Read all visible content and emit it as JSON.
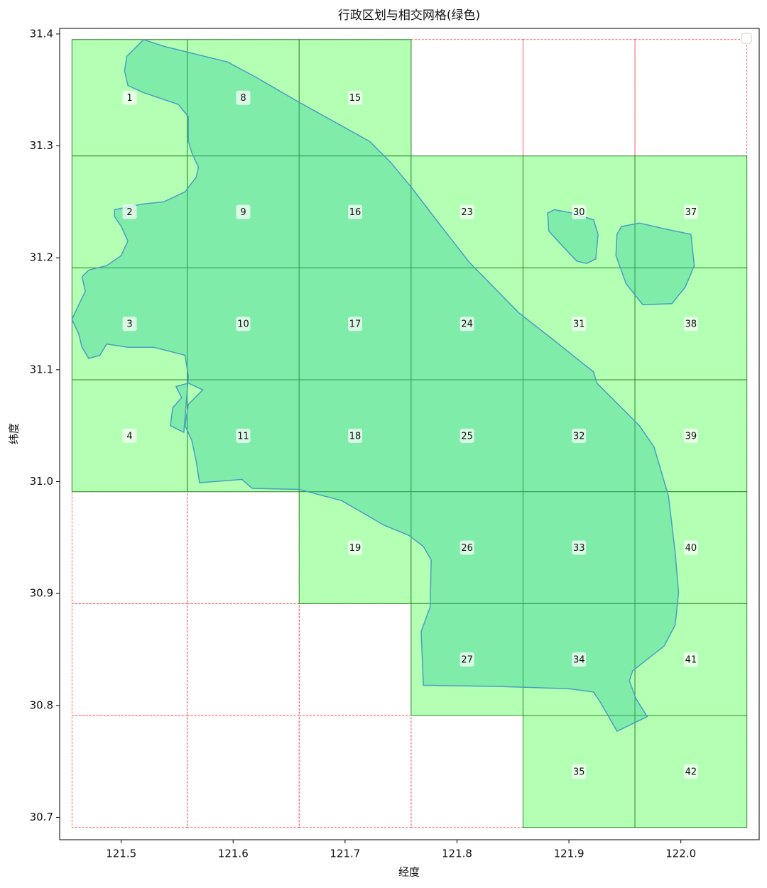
{
  "chart_data": {
    "type": "grid-map",
    "title": "行政区划与相交网格(绿色)",
    "x_label": "经度",
    "y_label": "纬度",
    "xlim": [
      121.445,
      122.07
    ],
    "ylim": [
      30.68,
      31.405
    ],
    "xticks": [
      121.5,
      121.6,
      121.7,
      121.8,
      121.9,
      {
        "value": 122,
        "label": "122.0"
      }
    ],
    "yticks": [
      30.7,
      30.8,
      30.9,
      {
        "value": 31,
        "label": "31.0"
      },
      31.1,
      31.2,
      31.3,
      31.4
    ],
    "x_edges": [
      121.456,
      121.559,
      121.659,
      121.759,
      121.859,
      121.959,
      122.059
    ],
    "y_edges": [
      31.395,
      31.291,
      31.191,
      31.091,
      30.991,
      30.891,
      30.791,
      30.691
    ],
    "grid_color": "#ff3b3b",
    "cell_color": "#b3ffb3",
    "cell_edge_color": "#2e8b2e",
    "region_color": "#20c997",
    "region_edge_color": "#4a9fc0",
    "cells": [
      1,
      2,
      3,
      4,
      8,
      9,
      10,
      11,
      15,
      16,
      17,
      18,
      19,
      23,
      24,
      25,
      26,
      27,
      30,
      31,
      32,
      33,
      34,
      35,
      37,
      38,
      39,
      40,
      41,
      42
    ],
    "regions": [
      {
        "lon": [
          121.52,
          121.538,
          121.595,
          121.621,
          121.659,
          121.722,
          121.741,
          121.76,
          121.786,
          121.811,
          121.855,
          121.887,
          121.922,
          121.925,
          121.947,
          121.963,
          121.976,
          121.989,
          121.995,
          121.998,
          121.995,
          121.985,
          121.957,
          121.954,
          121.96,
          121.97,
          121.943,
          121.928,
          121.922,
          121.9,
          121.836,
          121.77,
          121.768,
          121.776,
          121.777,
          121.77,
          121.757,
          121.735,
          121.697,
          121.659,
          121.617,
          121.608,
          121.57,
          121.567,
          121.563,
          121.557,
          121.56,
          121.573,
          121.56,
          121.549,
          121.554,
          121.546,
          121.544,
          121.556,
          121.56,
          121.557,
          121.541,
          121.529,
          121.506,
          121.487,
          121.481,
          121.471,
          121.465,
          121.462,
          121.456,
          121.462,
          121.468,
          121.465,
          121.471,
          121.487,
          121.5,
          121.506,
          121.5,
          121.494,
          121.494,
          121.519,
          121.538,
          121.557,
          121.567,
          121.569,
          121.563,
          121.56,
          121.56,
          121.551,
          121.519,
          121.506,
          121.503,
          121.505
        ],
        "lat": [
          31.395,
          31.389,
          31.375,
          31.361,
          31.339,
          31.304,
          31.285,
          31.262,
          31.228,
          31.196,
          31.151,
          31.126,
          31.098,
          31.088,
          31.066,
          31.05,
          31.031,
          30.987,
          30.936,
          30.901,
          30.872,
          30.853,
          30.831,
          30.822,
          30.806,
          30.79,
          30.777,
          30.803,
          30.812,
          30.815,
          30.817,
          30.818,
          30.866,
          30.888,
          30.93,
          30.942,
          30.952,
          30.961,
          30.983,
          30.993,
          30.994,
          31.002,
          30.999,
          31.018,
          31.037,
          31.05,
          31.069,
          31.082,
          31.088,
          31.085,
          31.075,
          31.066,
          31.05,
          31.044,
          31.094,
          31.113,
          31.117,
          31.12,
          31.12,
          31.123,
          31.113,
          31.11,
          31.12,
          31.132,
          31.145,
          31.158,
          31.17,
          31.183,
          31.189,
          31.193,
          31.202,
          31.215,
          31.228,
          31.237,
          31.243,
          31.248,
          31.25,
          31.259,
          31.272,
          31.281,
          31.294,
          31.304,
          31.326,
          31.337,
          31.348,
          31.354,
          31.367,
          31.38
        ]
      },
      {
        "lon": [
          121.881,
          121.887,
          121.903,
          121.922,
          121.926,
          121.924,
          121.916,
          121.907,
          121.893,
          121.882
        ],
        "lat": [
          31.24,
          31.243,
          31.24,
          31.234,
          31.221,
          31.199,
          31.195,
          31.197,
          31.212,
          31.224
        ]
      },
      {
        "lon": [
          121.947,
          121.963,
          121.985,
          122.009,
          122.012,
          122.004,
          121.992,
          121.966,
          121.951,
          121.942,
          121.943
        ],
        "lat": [
          31.228,
          31.231,
          31.226,
          31.221,
          31.193,
          31.174,
          31.159,
          31.158,
          31.177,
          31.202,
          31.221
        ]
      }
    ]
  }
}
